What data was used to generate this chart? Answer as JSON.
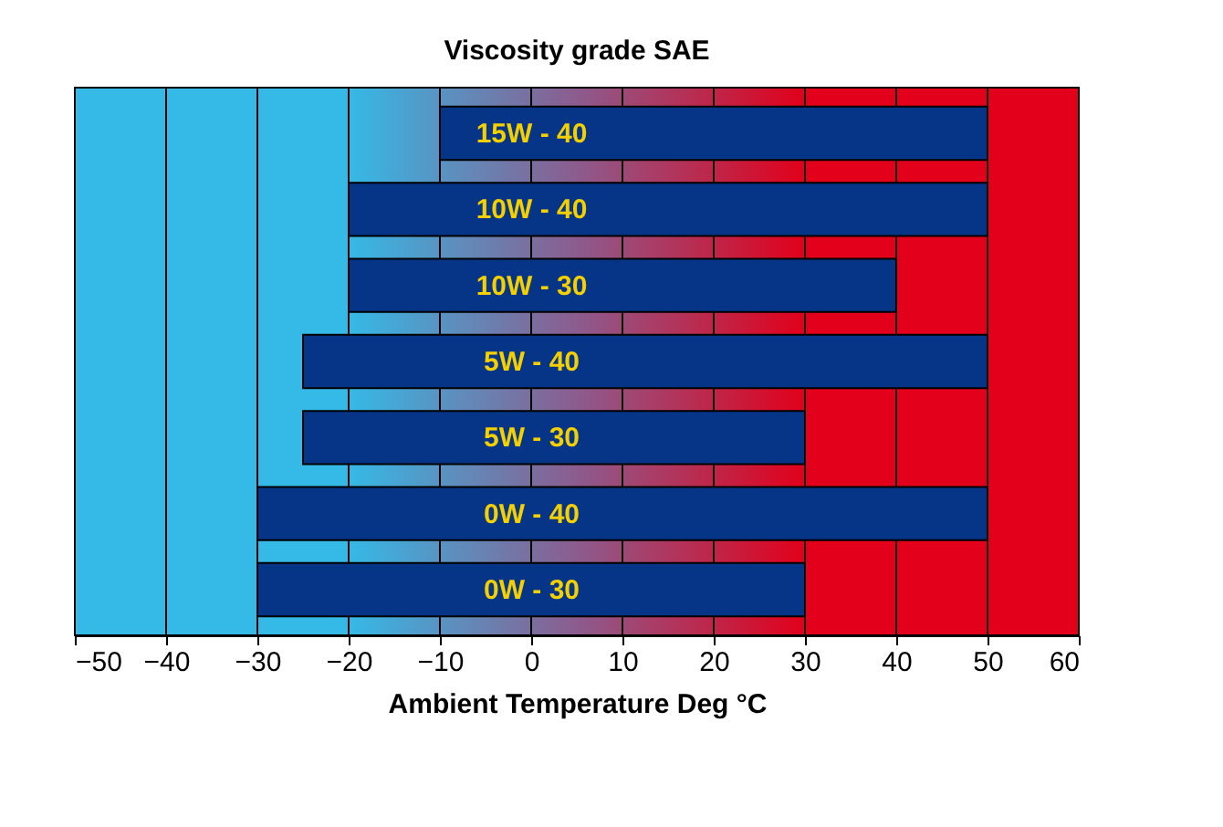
{
  "chart_data": {
    "type": "bar",
    "orientation": "horizontal",
    "title": "Viscosity grade SAE",
    "xlabel": "Ambient Temperature Deg °C",
    "categories": [
      "15W - 40",
      "10W - 40",
      "10W - 30",
      "5W - 40",
      "5W - 30",
      "0W - 40",
      "0W - 30"
    ],
    "base": [
      -10,
      -20,
      -20,
      -25,
      -25,
      -30,
      -30
    ],
    "values": [
      60,
      70,
      60,
      75,
      55,
      80,
      60
    ],
    "color": "#063487",
    "xlim": [
      -50,
      60
    ],
    "xticks": [
      -50,
      -40,
      -30,
      -20,
      -10,
      0,
      10,
      20,
      30,
      40,
      50,
      60
    ],
    "grid": "x",
    "tick_labels": "x",
    "bands": [
      {
        "axis": "x",
        "from": -50,
        "to": -20,
        "color": "#35b9e6"
      },
      {
        "axis": "x",
        "from": -20,
        "to": 30,
        "color": "#8c5c8e"
      },
      {
        "axis": "x",
        "from": 30,
        "to": 60,
        "color": "#e2001a"
      }
    ]
  }
}
